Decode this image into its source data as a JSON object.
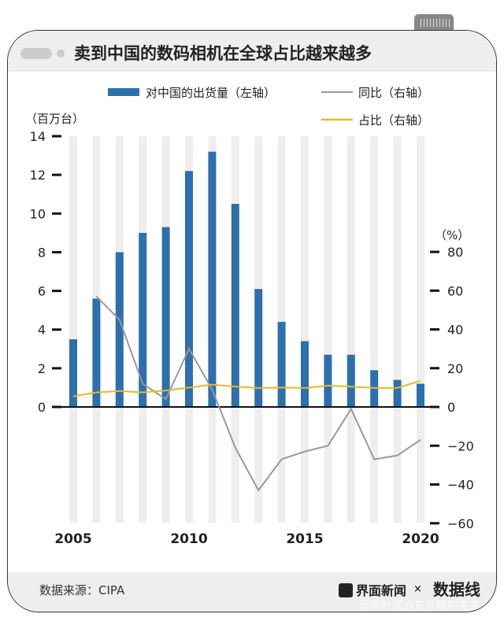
{
  "title": "卖到中国的数码相机在全球占比越来越多",
  "footer": {
    "source": "数据来源：CIPA",
    "brand": "界面新闻",
    "times": "×",
    "brand2": "数据线",
    "watermark": "风闻社区@东八区的先生"
  },
  "colors": {
    "bars": "#2e6fae",
    "yoy": "#999999",
    "share": "#e8b923",
    "stripes": "#eeeeee"
  },
  "chart_data": {
    "type": "bar+line",
    "title": "卖到中国的数码相机在全球占比越来越多",
    "left_unit": "（百万台）",
    "right_unit": "（%）",
    "x": [
      2005,
      2006,
      2007,
      2008,
      2009,
      2010,
      2011,
      2012,
      2013,
      2014,
      2015,
      2016,
      2017,
      2018,
      2019,
      2020
    ],
    "x_ticks": [
      "2005",
      "2010",
      "2015",
      "2020"
    ],
    "left_ylim": [
      0,
      14
    ],
    "left_ticks": [
      "0",
      "2",
      "4",
      "6",
      "8",
      "10",
      "12",
      "14"
    ],
    "right_ylim": [
      -60,
      80
    ],
    "right_ticks": [
      "-60",
      "-40",
      "-20",
      "0",
      "20",
      "40",
      "60",
      "80"
    ],
    "series": [
      {
        "name": "对中国的出货量（左轴）",
        "type": "bar",
        "axis": "left",
        "values": [
          3.5,
          5.6,
          8.0,
          9.0,
          9.3,
          12.2,
          13.2,
          10.5,
          6.1,
          4.4,
          3.4,
          2.7,
          2.7,
          1.9,
          1.4,
          1.2
        ]
      },
      {
        "name": "同比（右轴）",
        "type": "line",
        "axis": "right",
        "values": [
          null,
          57,
          45,
          12,
          4,
          30,
          9,
          -21,
          -43,
          -27,
          -23,
          -20,
          -1,
          -27,
          -25,
          -17
        ]
      },
      {
        "name": "占比（右轴）",
        "type": "line",
        "axis": "right",
        "values": [
          5.5,
          7.5,
          8.2,
          7.5,
          8.5,
          10,
          11.5,
          10.5,
          9.8,
          10,
          9.8,
          11,
          10.5,
          9.8,
          9.8,
          13.5
        ]
      }
    ],
    "legend": "top"
  }
}
